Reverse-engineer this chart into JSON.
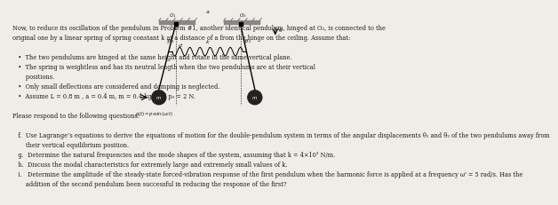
{
  "bg_color": "#f0ede8",
  "text_color": "#1a1a1a",
  "body_fontsize": 4.8,
  "lines": [
    "Now, to reduce its oscillation of the pendulum in Problem #1, another identical pendulum, hinged at O₂, is connected to the",
    "original one by a linear spring of spring constant k at a distance of a from the hinge on the ceiling. Assume that:",
    "",
    "   •  The two pendulums are hinged at the same height and rotate in the same vertical plane.",
    "   •  The spring is weightless and has its neutral length when the two pendulums are at their vertical",
    "       positions.",
    "   •  Only small deflections are considered and damping is neglected.",
    "   •  Assume L = 0.8 m , a = 0.4 m, m = 0.4 kg, and p₀ = 2 N.",
    "",
    "Please respond to the following questions:",
    "",
    "   f.  Use Lagrange’s equations to derive the equations of motion for the double-pendulum system in terms of the angular displacements θ₁ and θ₂ of the two pendulums away from",
    "       their vertical equilibrium position.",
    "   g.  Determine the natural frequencies and the mode shapes of the system, assuming that k = 4×10³ N/m.",
    "   h.  Discuss the modal characteristics for extremely large and extremely small values of k.",
    "   i.   Determine the amplitude of the steady-state forced-vibration response of the first pendulum when the harmonic force is applied at a frequency ωⁱ = 5 rad/s. Has the",
    "       addition of the second pendulum been successful in reducing the response of the first?"
  ]
}
